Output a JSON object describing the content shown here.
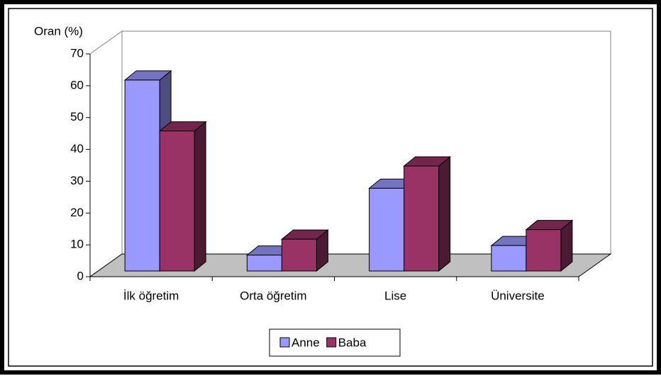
{
  "chart_data": {
    "type": "bar3d",
    "y_label": "Oran (%)",
    "categories": [
      "İlk öğretim",
      "Orta öğretim",
      "Lise",
      "Üniversite"
    ],
    "series": [
      {
        "name": "Anne",
        "color": "#9999ff",
        "values": [
          60,
          5,
          26,
          8
        ]
      },
      {
        "name": "Baba",
        "color": "#993366",
        "values": [
          44,
          10,
          33,
          13
        ]
      }
    ],
    "ylim": [
      0,
      70
    ],
    "yticks": [
      0,
      10,
      20,
      30,
      40,
      50,
      60,
      70
    ],
    "grid": false,
    "legend": "bottom"
  }
}
